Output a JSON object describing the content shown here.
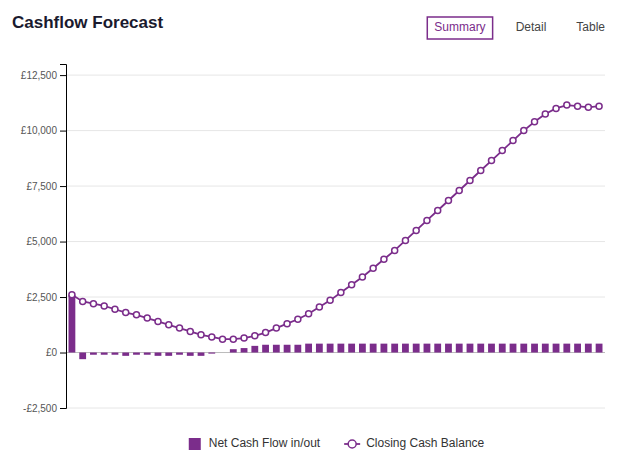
{
  "chart_data": {
    "type": "bar",
    "title": "Cashflow Forecast",
    "annotations": [
      "Summary",
      "Detail",
      "Table"
    ],
    "categories": [
      null,
      null,
      null,
      null,
      null,
      null,
      null,
      null,
      null,
      null,
      null,
      null,
      null,
      null,
      null,
      null,
      null,
      null,
      null,
      null,
      null,
      null,
      null,
      null,
      null,
      null,
      null,
      null,
      null,
      null,
      null,
      null,
      null,
      null,
      null,
      null,
      null,
      null,
      null,
      null,
      null,
      null,
      null,
      null,
      null,
      null,
      null,
      null,
      null,
      null
    ],
    "series": [
      {
        "name": "Net Cash Flow in/out",
        "type": "bar",
        "color": "#7b2d8b",
        "values": [
          2600,
          -300,
          -100,
          -100,
          -100,
          -150,
          -100,
          -100,
          -150,
          -150,
          -100,
          -150,
          -150,
          -50,
          0,
          150,
          200,
          300,
          350,
          350,
          350,
          350,
          400,
          400,
          400,
          400,
          400,
          400,
          400,
          400,
          400,
          400,
          400,
          400,
          400,
          400,
          400,
          400,
          400,
          400,
          400,
          400,
          400,
          400,
          400,
          400,
          400,
          400,
          400,
          400
        ]
      },
      {
        "name": "Closing Cash Balance",
        "type": "line",
        "color": "#7b2d8b",
        "marker": "circle",
        "line_style": "solid",
        "values": [
          2600,
          2300,
          2200,
          2100,
          1950,
          1800,
          1700,
          1550,
          1400,
          1250,
          1100,
          950,
          800,
          700,
          600,
          600,
          650,
          750,
          900,
          1100,
          1300,
          1500,
          1750,
          2050,
          2350,
          2700,
          3050,
          3400,
          3800,
          4200,
          4600,
          5050,
          5500,
          5950,
          6400,
          6850,
          7300,
          7750,
          8200,
          8650,
          9100,
          9550,
          10000,
          10400,
          10750,
          11000,
          11150,
          11100,
          11050,
          11100
        ]
      }
    ],
    "ylim": [
      -2500,
      13000
    ],
    "yticks": [
      {
        "value": -2500,
        "label": "-£2,500"
      },
      {
        "value": 0,
        "label": "£0"
      },
      {
        "value": 2500,
        "label": "£2,500"
      },
      {
        "value": 5000,
        "label": "£5,000"
      },
      {
        "value": 7500,
        "label": "£7,500"
      },
      {
        "value": 10000,
        "label": "£10,000"
      },
      {
        "value": 12500,
        "label": "£12,500"
      }
    ],
    "grid": true,
    "legend": "bottom",
    "tick_labels": "y"
  }
}
